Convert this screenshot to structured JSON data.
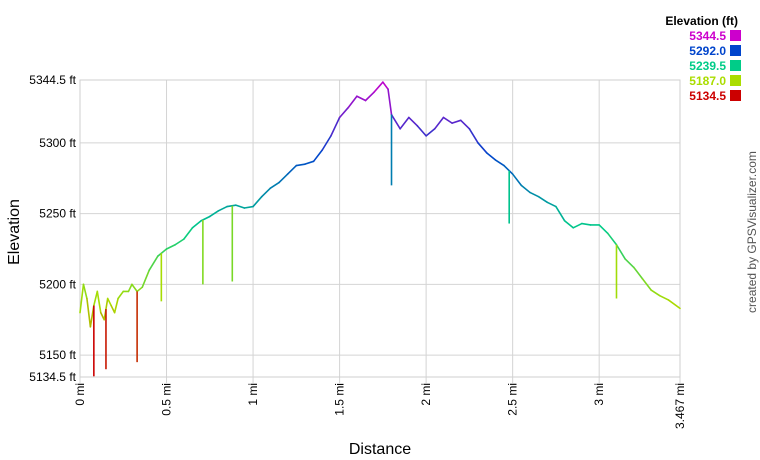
{
  "chart_data": {
    "type": "line",
    "xlabel": "Distance",
    "ylabel": "Elevation",
    "xlim": [
      0,
      3.467
    ],
    "ylim": [
      5134.5,
      5344.5
    ],
    "x_ticks": [
      {
        "value": 0,
        "label": "0 mi"
      },
      {
        "value": 0.5,
        "label": "0.5 mi"
      },
      {
        "value": 1,
        "label": "1 mi"
      },
      {
        "value": 1.5,
        "label": "1.5 mi"
      },
      {
        "value": 2,
        "label": "2 mi"
      },
      {
        "value": 2.5,
        "label": "2.5 mi"
      },
      {
        "value": 3,
        "label": "3 mi"
      },
      {
        "value": 3.467,
        "label": "3.467 mi"
      }
    ],
    "y_ticks": [
      {
        "value": 5344.5,
        "label": "5344.5 ft"
      },
      {
        "value": 5300,
        "label": "5300 ft"
      },
      {
        "value": 5250,
        "label": "5250 ft"
      },
      {
        "value": 5200,
        "label": "5200 ft"
      },
      {
        "value": 5150,
        "label": "5150 ft"
      },
      {
        "value": 5134.5,
        "label": "5134.5 ft"
      }
    ],
    "grid": true,
    "legend": {
      "title": "Elevation (ft)",
      "placement": "top-right",
      "items": [
        {
          "label": "5344.5",
          "color": "#cc00cc"
        },
        {
          "label": "5292.0",
          "color": "#0044cc"
        },
        {
          "label": "5239.5",
          "color": "#00cc88"
        },
        {
          "label": "5187.0",
          "color": "#aadd00"
        },
        {
          "label": "5134.5",
          "color": "#cc0000"
        }
      ]
    },
    "series": [
      {
        "color_scale": "elevation",
        "x": [
          0,
          0.02,
          0.04,
          0.06,
          0.08,
          0.1,
          0.12,
          0.14,
          0.16,
          0.18,
          0.2,
          0.22,
          0.25,
          0.28,
          0.3,
          0.33,
          0.36,
          0.4,
          0.45,
          0.5,
          0.55,
          0.6,
          0.65,
          0.7,
          0.75,
          0.8,
          0.85,
          0.9,
          0.95,
          1.0,
          1.05,
          1.1,
          1.15,
          1.2,
          1.25,
          1.3,
          1.35,
          1.4,
          1.45,
          1.5,
          1.55,
          1.6,
          1.65,
          1.7,
          1.75,
          1.78,
          1.8,
          1.85,
          1.9,
          1.95,
          2.0,
          2.05,
          2.1,
          2.15,
          2.2,
          2.25,
          2.3,
          2.35,
          2.4,
          2.45,
          2.5,
          2.55,
          2.6,
          2.65,
          2.7,
          2.75,
          2.8,
          2.85,
          2.9,
          2.95,
          3.0,
          3.05,
          3.1,
          3.15,
          3.2,
          3.25,
          3.3,
          3.35,
          3.4,
          3.467
        ],
        "y": [
          5180,
          5200,
          5190,
          5170,
          5185,
          5195,
          5180,
          5175,
          5190,
          5185,
          5180,
          5190,
          5195,
          5195,
          5200,
          5195,
          5198,
          5210,
          5220,
          5225,
          5228,
          5232,
          5240,
          5245,
          5248,
          5252,
          5255,
          5256,
          5254,
          5255,
          5262,
          5268,
          5272,
          5278,
          5284,
          5285,
          5287,
          5295,
          5305,
          5318,
          5325,
          5333,
          5330,
          5336,
          5343,
          5338,
          5320,
          5310,
          5318,
          5312,
          5305,
          5310,
          5318,
          5314,
          5316,
          5310,
          5300,
          5293,
          5288,
          5284,
          5278,
          5270,
          5265,
          5262,
          5258,
          5255,
          5245,
          5240,
          5243,
          5242,
          5242,
          5236,
          5228,
          5218,
          5212,
          5204,
          5196,
          5192,
          5189,
          5183
        ]
      }
    ],
    "spikes": [
      {
        "x": 0.08,
        "y": 5135
      },
      {
        "x": 0.15,
        "y": 5140
      },
      {
        "x": 0.33,
        "y": 5145
      },
      {
        "x": 0.47,
        "y": 5188
      },
      {
        "x": 0.71,
        "y": 5200
      },
      {
        "x": 0.88,
        "y": 5202
      },
      {
        "x": 1.8,
        "y": 5270
      },
      {
        "x": 2.48,
        "y": 5243
      },
      {
        "x": 3.1,
        "y": 5190
      }
    ]
  },
  "credit": "created by GPSVisualizer.com"
}
